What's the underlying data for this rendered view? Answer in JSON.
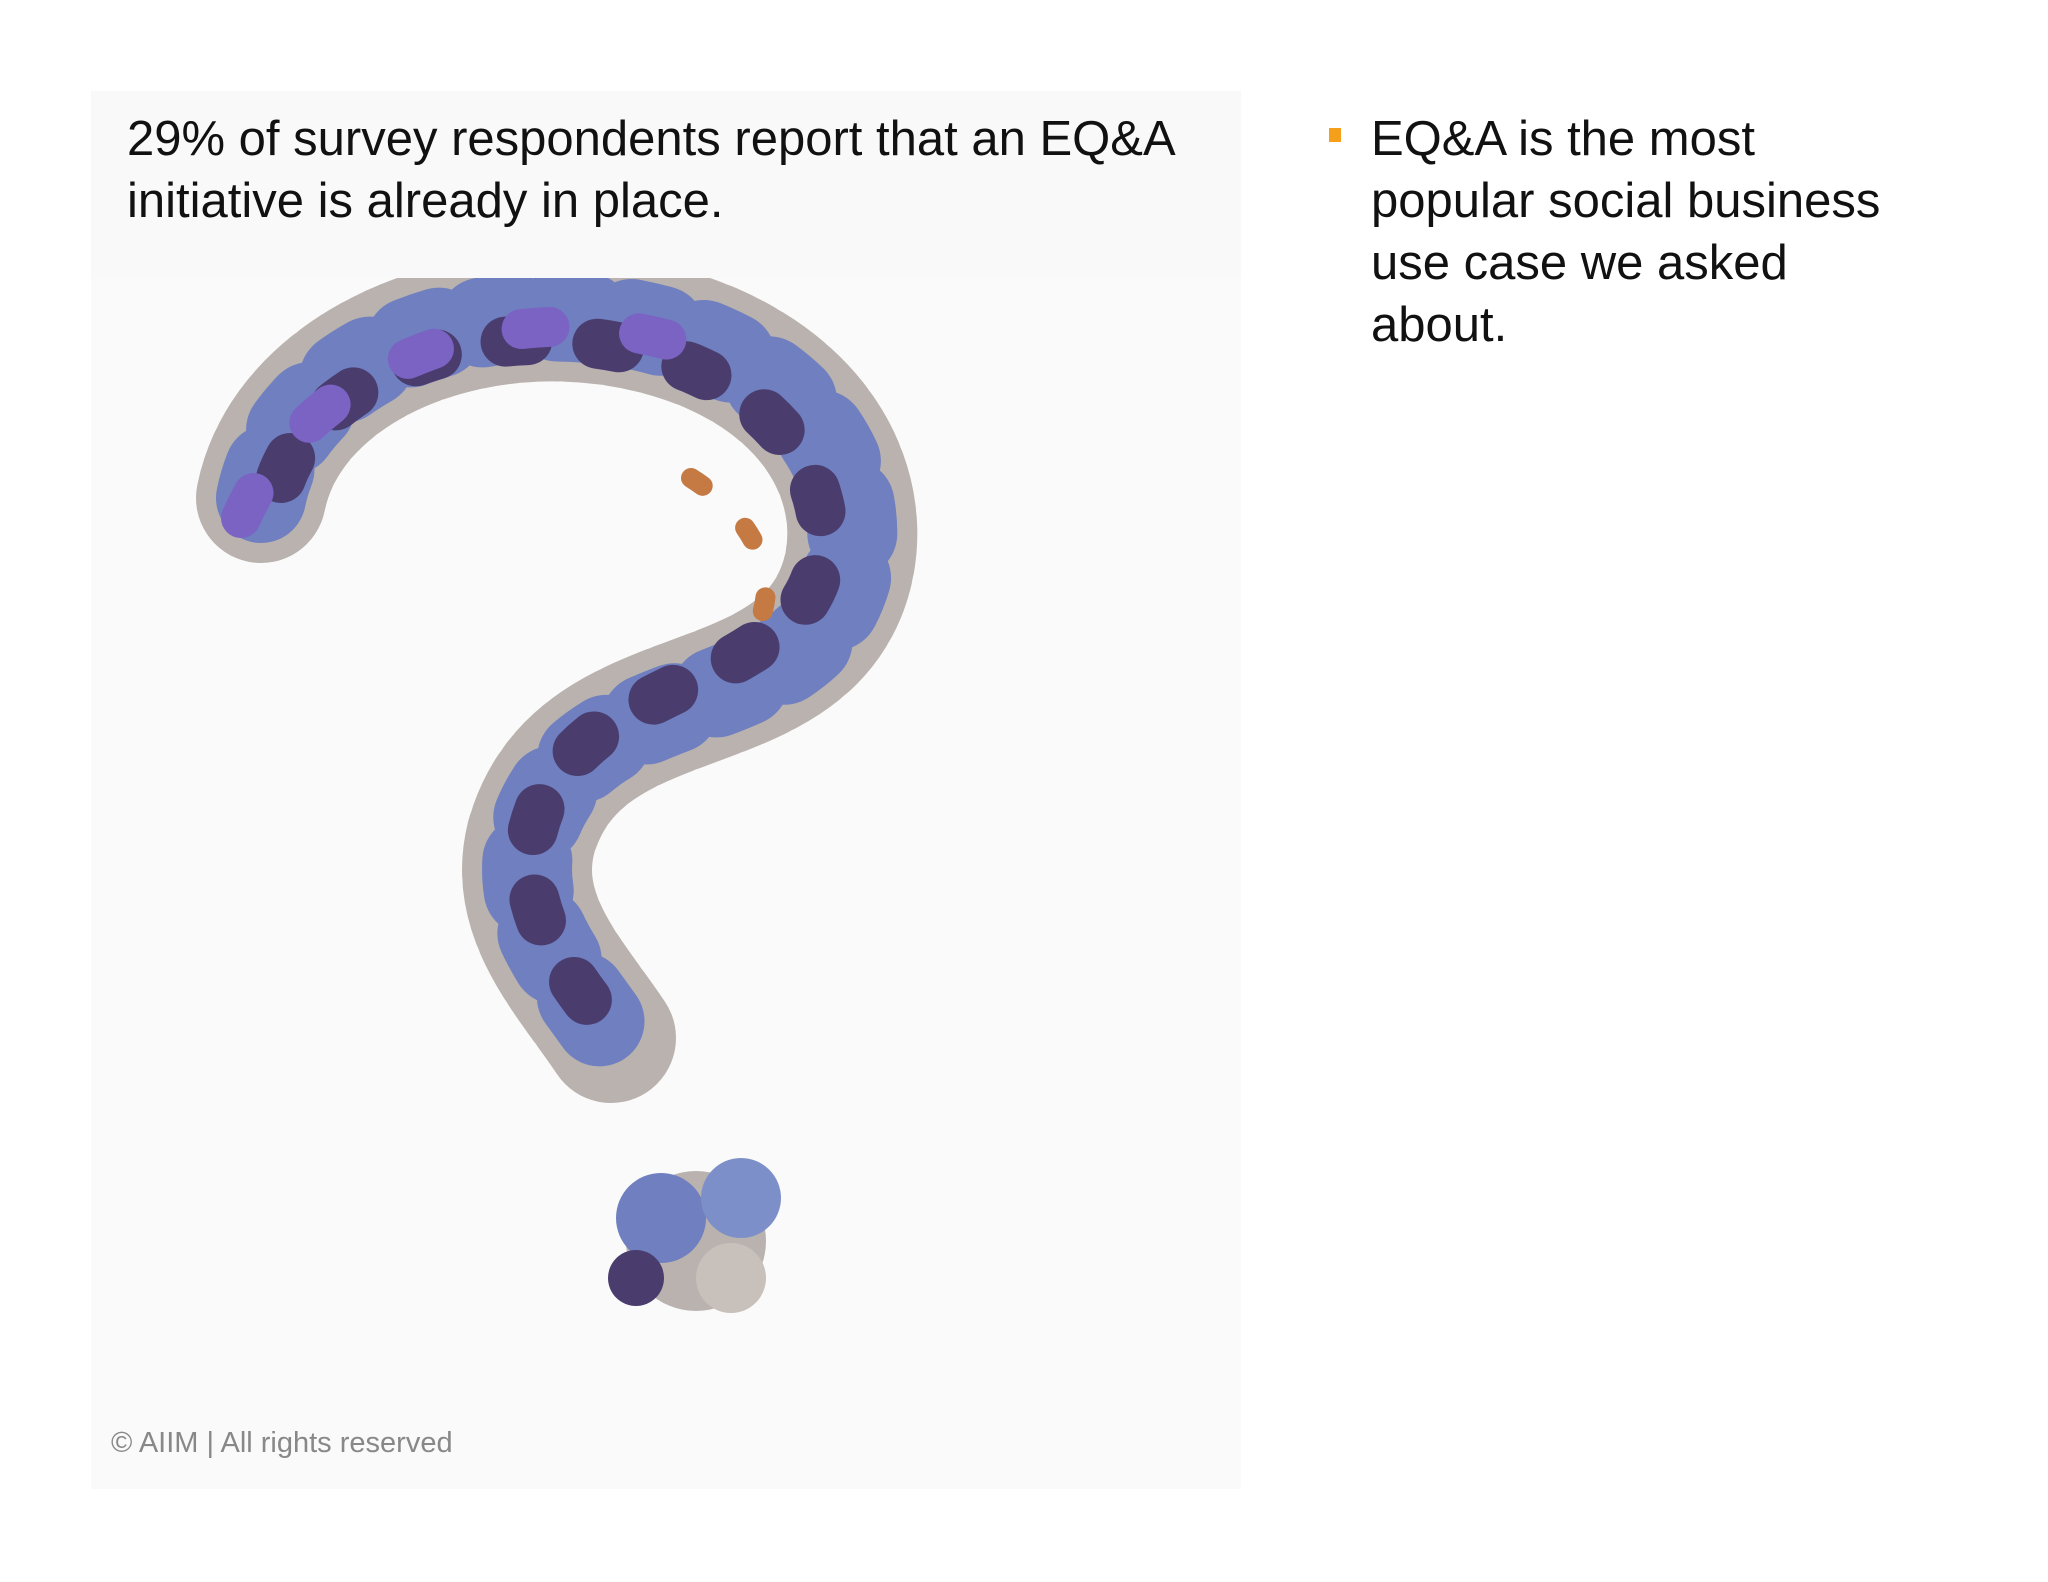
{
  "slide": {
    "caption": "29% of survey respondents report that an EQ&A initiative is already in place.",
    "bullets": [
      "EQ&A is the most popular social business use case we asked about."
    ],
    "footer": "© AIIM | All rights reserved"
  }
}
